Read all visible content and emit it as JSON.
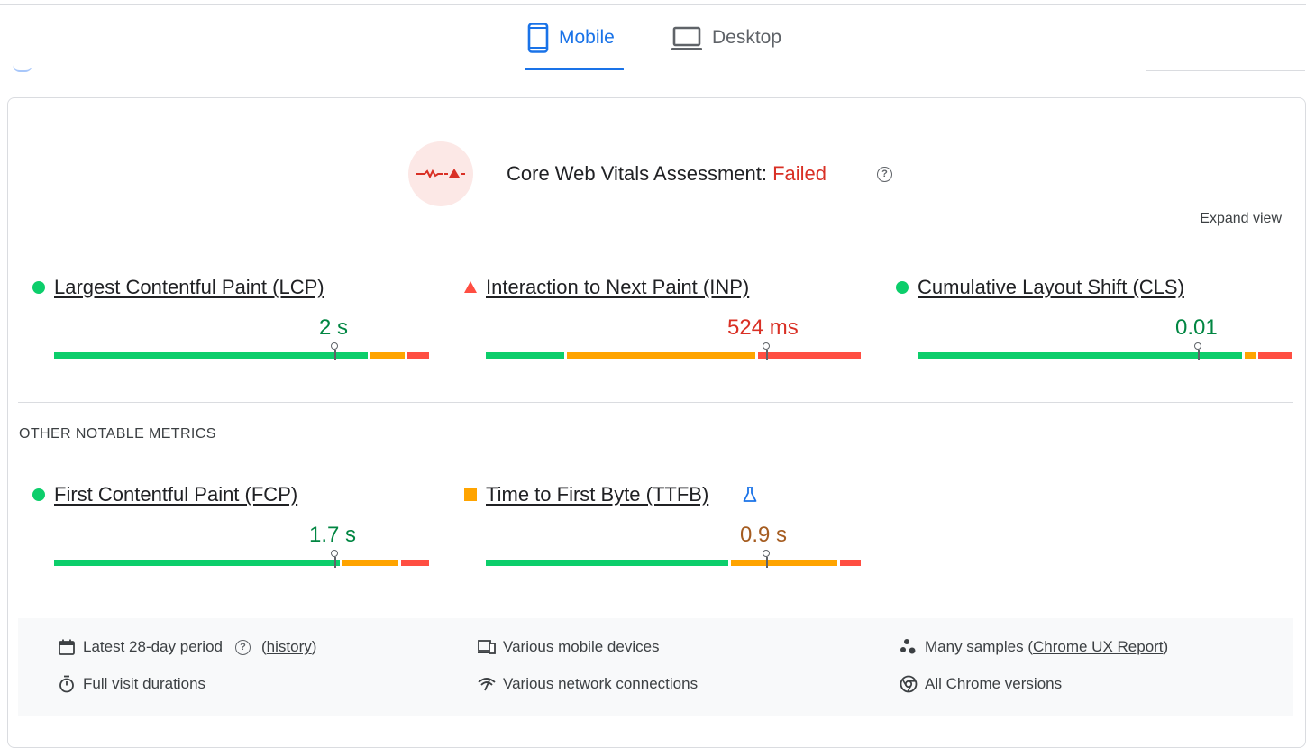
{
  "tabs": [
    {
      "label": "Mobile",
      "icon": "mobile-icon",
      "active": true
    },
    {
      "label": "Desktop",
      "icon": "laptop-icon",
      "active": false
    }
  ],
  "assessment": {
    "title": "Core Web Vitals Assessment: ",
    "status": "Failed",
    "status_color": "#d93025",
    "help_icon": "help-circle-icon",
    "expand_label": "Expand view"
  },
  "core_metrics": [
    {
      "name": "Largest Contentful Paint (LCP)",
      "value": "2 s",
      "rating": "good",
      "value_color": "#018642",
      "indicator": "green-circle"
    },
    {
      "name": "Interaction to Next Paint (INP)",
      "value": "524 ms",
      "rating": "poor",
      "value_color": "#d93025",
      "indicator": "red-triangle"
    },
    {
      "name": "Cumulative Layout Shift (CLS)",
      "value": "0.01",
      "rating": "good",
      "value_color": "#018642",
      "indicator": "green-circle"
    }
  ],
  "other_section_label": "OTHER NOTABLE METRICS",
  "other_metrics": [
    {
      "name": "First Contentful Paint (FCP)",
      "value": "1.7 s",
      "rating": "good",
      "value_color": "#018642",
      "indicator": "green-circle"
    },
    {
      "name": "Time to First Byte (TTFB)",
      "value": "0.9 s",
      "rating": "needs-improvement",
      "value_color": "#a55c20",
      "indicator": "orange-square",
      "badge_icon": "experimental-beaker-icon"
    }
  ],
  "info": {
    "period_label": "Latest 28-day period",
    "history_prefix": "(",
    "history_link": "history",
    "history_suffix": ")",
    "devices": "Various mobile devices",
    "samples_prefix": "Many samples (",
    "samples_link": "Chrome UX Report",
    "samples_suffix": ")",
    "durations": "Full visit durations",
    "network": "Various network connections",
    "versions": "All Chrome versions"
  },
  "colors": {
    "accent": "#1a73e8",
    "good": "#0cce6b",
    "needs_improvement": "#ffa400",
    "poor": "#ff4e42"
  }
}
